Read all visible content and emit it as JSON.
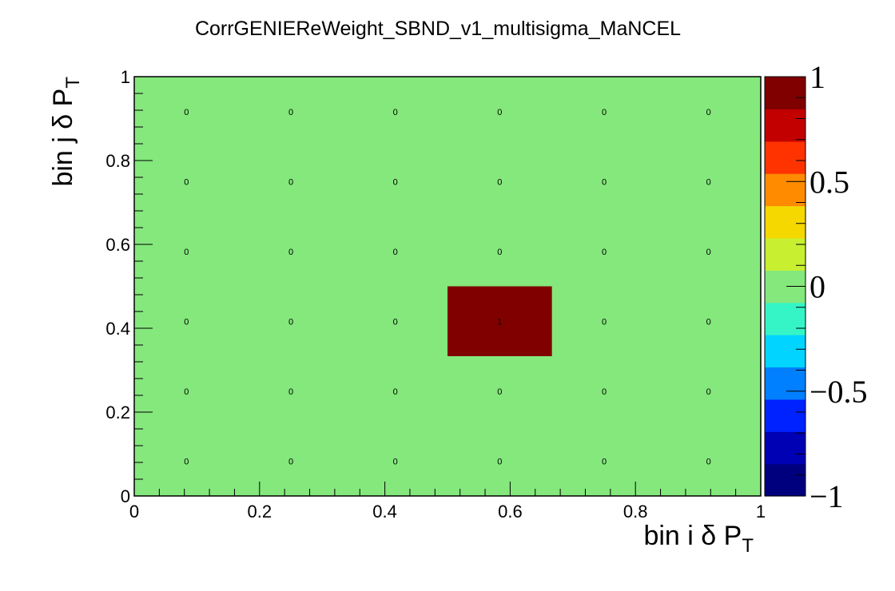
{
  "chart_data": {
    "type": "heatmap",
    "title": "CorrGENIEReWeight_SBND_v1_multisigma_MaNCEL",
    "xlabel": {
      "text": "bin i δ P",
      "sub": "T"
    },
    "ylabel": {
      "text": "bin j δ P",
      "sub": "T"
    },
    "xlim": [
      0,
      1
    ],
    "ylim": [
      0,
      1
    ],
    "zlim": [
      -1,
      1
    ],
    "x_ticks": [
      "0",
      "0.2",
      "0.4",
      "0.6",
      "0.8",
      "1"
    ],
    "y_ticks": [
      "0",
      "0.2",
      "0.4",
      "0.6",
      "0.8",
      "1"
    ],
    "z_ticks": [
      "−1",
      "−0.5",
      "0",
      "0.5",
      "1"
    ],
    "x_bins": 6,
    "y_bins": 6,
    "cell_labels": [
      [
        "0",
        "0",
        "0",
        "0",
        "0",
        "0"
      ],
      [
        "0",
        "0",
        "0",
        "0",
        "0",
        "0"
      ],
      [
        "0",
        "0",
        "0",
        "0",
        "0",
        "0"
      ],
      [
        "0",
        "0",
        "0",
        "1",
        "0",
        "0"
      ],
      [
        "0",
        "0",
        "0",
        "0",
        "0",
        "0"
      ],
      [
        "0",
        "0",
        "0",
        "0",
        "0",
        "0"
      ]
    ],
    "values": [
      [
        0,
        0,
        0,
        0,
        0,
        0
      ],
      [
        0,
        0,
        0,
        0,
        0,
        0
      ],
      [
        0,
        0,
        0,
        0,
        0,
        0
      ],
      [
        0,
        0,
        0,
        1,
        0,
        0
      ],
      [
        0,
        0,
        0,
        0,
        0,
        0
      ],
      [
        0,
        0,
        0,
        0,
        0,
        0
      ]
    ],
    "colors": {
      "zero": "#84e87c",
      "one": "#800000"
    },
    "palette": [
      "#00007f",
      "#0000b4",
      "#0022ff",
      "#007fff",
      "#00d4ff",
      "#35f5c6",
      "#84e87c",
      "#c8f030",
      "#f5d800",
      "#ff8c00",
      "#ff3300",
      "#c30000",
      "#800000"
    ]
  }
}
